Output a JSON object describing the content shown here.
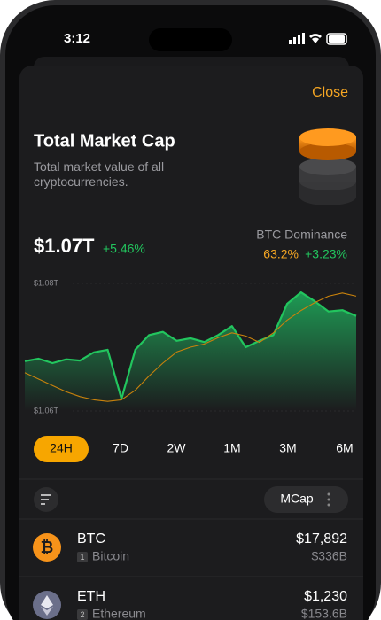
{
  "status": {
    "time": "3:12"
  },
  "header": {
    "close": "Close",
    "title": "Total Market Cap",
    "subtitle": "Total market value of all cryptocurrencies."
  },
  "summary": {
    "value": "$1.07T",
    "change": "+5.46%",
    "dominance_label": "BTC Dominance",
    "dominance": "63.2%",
    "dominance_change": "+3.23%"
  },
  "chart_data": {
    "type": "line",
    "ylim": [
      1.06,
      1.08
    ],
    "yticks": [
      {
        "value": 1.08,
        "label": "$1.08T"
      },
      {
        "value": 1.06,
        "label": "$1.06T"
      }
    ],
    "y2lim": [
      62.5,
      63.3
    ],
    "series": [
      {
        "name": "Total Market Cap",
        "color": "#22c55e",
        "values": [
          1.0678,
          1.0682,
          1.0675,
          1.0681,
          1.0679,
          1.0692,
          1.0696,
          1.0619,
          1.0696,
          1.0719,
          1.0724,
          1.071,
          1.0714,
          1.0708,
          1.0719,
          1.0733,
          1.07,
          1.071,
          1.0719,
          1.0768,
          1.0786,
          1.0772,
          1.0756,
          1.0758,
          1.0749
        ]
      },
      {
        "name": "BTC Dominance",
        "color": "#c9820c",
        "axis": "y2",
        "values": [
          62.74,
          62.7,
          62.66,
          62.62,
          62.59,
          62.57,
          62.56,
          62.57,
          62.63,
          62.72,
          62.8,
          62.87,
          62.9,
          62.92,
          62.96,
          62.99,
          62.97,
          62.93,
          62.99,
          63.07,
          63.13,
          63.18,
          63.22,
          63.24,
          63.22
        ]
      }
    ]
  },
  "timeframes": {
    "active": 0,
    "items": [
      "24H",
      "7D",
      "2W",
      "1M",
      "3M",
      "6M"
    ]
  },
  "sort": {
    "label": "MCap"
  },
  "coins": [
    {
      "symbol": "BTC",
      "rank": 1,
      "name": "Bitcoin",
      "price": "$17,892",
      "mcap": "$336B"
    },
    {
      "symbol": "ETH",
      "rank": 2,
      "name": "Ethereum",
      "price": "$1,230",
      "mcap": "$153.6B"
    }
  ]
}
